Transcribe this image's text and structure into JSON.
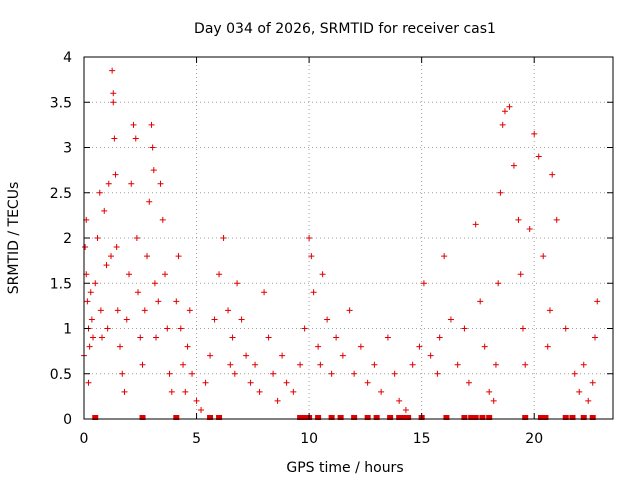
{
  "chart_data": {
    "type": "scatter",
    "title": "Day 034 of 2026, SRMTID for receiver cas1",
    "xlabel": "GPS time / hours",
    "ylabel": "SRMTID / TECUs",
    "xlim": [
      0,
      23.5
    ],
    "ylim": [
      0,
      4
    ],
    "xticks": [
      0,
      5,
      10,
      15,
      20
    ],
    "xtick_labels": [
      "0",
      "5",
      "10",
      "15",
      "20"
    ],
    "yticks": [
      0,
      0.5,
      1,
      1.5,
      2,
      2.5,
      3,
      3.5,
      4
    ],
    "ytick_labels": [
      "0",
      "0.5",
      "1",
      "1.5",
      "2",
      "2.5",
      "3",
      "3.5",
      "4"
    ],
    "grid": true,
    "series": [
      {
        "name": "SRMTID",
        "color": "#e00000",
        "marker": "+",
        "x": [
          0.0,
          0.05,
          0.1,
          0.1,
          0.15,
          0.2,
          0.2,
          0.25,
          0.3,
          0.35,
          0.4,
          0.5,
          0.6,
          0.7,
          0.75,
          0.8,
          0.9,
          1.0,
          1.05,
          1.1,
          1.2,
          1.25,
          1.3,
          1.3,
          1.35,
          1.4,
          1.45,
          1.5,
          1.6,
          1.7,
          1.8,
          1.9,
          2.0,
          2.1,
          2.2,
          2.3,
          2.35,
          2.4,
          2.5,
          2.6,
          2.7,
          2.8,
          2.9,
          3.0,
          3.05,
          3.1,
          3.15,
          3.2,
          3.3,
          3.4,
          3.5,
          3.6,
          3.7,
          3.8,
          3.9,
          4.1,
          4.2,
          4.3,
          4.4,
          4.5,
          4.6,
          4.7,
          4.8,
          5.0,
          5.2,
          5.4,
          5.6,
          5.8,
          6.0,
          6.2,
          6.4,
          6.5,
          6.6,
          6.7,
          6.8,
          7.0,
          7.2,
          7.4,
          7.6,
          7.8,
          8.0,
          8.2,
          8.4,
          8.6,
          8.8,
          9.0,
          9.3,
          9.6,
          9.8,
          10.0,
          10.1,
          10.2,
          10.4,
          10.5,
          10.6,
          10.8,
          11.0,
          11.2,
          11.5,
          11.8,
          12.0,
          12.3,
          12.6,
          12.9,
          13.2,
          13.5,
          13.8,
          14.0,
          14.3,
          14.6,
          14.9,
          15.1,
          15.4,
          15.7,
          15.8,
          16.0,
          16.3,
          16.6,
          16.9,
          17.1,
          17.4,
          17.6,
          17.8,
          18.0,
          18.2,
          18.3,
          18.4,
          18.5,
          18.6,
          18.7,
          18.9,
          19.1,
          19.3,
          19.4,
          19.5,
          19.6,
          19.8,
          20.0,
          20.2,
          20.4,
          20.6,
          20.7,
          20.8,
          21.0,
          21.4,
          21.8,
          22.0,
          22.2,
          22.4,
          22.6,
          22.7,
          22.8
        ],
        "y": [
          0.7,
          1.9,
          2.2,
          1.6,
          1.3,
          1.0,
          0.4,
          0.8,
          1.4,
          1.1,
          0.9,
          1.5,
          2.0,
          2.5,
          1.2,
          0.9,
          2.3,
          1.7,
          1.0,
          2.6,
          1.8,
          3.85,
          3.6,
          3.5,
          3.1,
          2.7,
          1.9,
          1.2,
          0.8,
          0.5,
          0.3,
          1.1,
          1.6,
          2.6,
          3.25,
          3.1,
          2.0,
          1.4,
          0.9,
          0.6,
          1.2,
          1.8,
          2.4,
          3.25,
          3.0,
          2.75,
          1.5,
          0.9,
          1.3,
          2.6,
          2.2,
          1.6,
          1.0,
          0.5,
          0.3,
          1.3,
          1.8,
          1.0,
          0.6,
          0.3,
          0.8,
          1.2,
          0.5,
          0.2,
          0.1,
          0.4,
          0.7,
          1.1,
          1.6,
          2.0,
          1.2,
          0.6,
          0.9,
          0.5,
          1.5,
          1.1,
          0.7,
          0.4,
          0.6,
          0.3,
          1.4,
          0.9,
          0.5,
          0.2,
          0.7,
          0.4,
          0.3,
          0.6,
          1.0,
          2.0,
          1.8,
          1.4,
          0.8,
          0.6,
          1.6,
          1.1,
          0.5,
          0.9,
          0.7,
          1.2,
          0.5,
          0.8,
          0.4,
          0.6,
          0.3,
          0.9,
          0.5,
          0.2,
          0.1,
          0.6,
          0.8,
          1.5,
          0.7,
          0.5,
          0.9,
          1.8,
          1.1,
          0.6,
          1.0,
          0.4,
          2.15,
          1.3,
          0.8,
          0.3,
          0.2,
          0.6,
          1.5,
          2.5,
          3.25,
          3.4,
          3.45,
          2.8,
          2.2,
          1.6,
          1.0,
          0.6,
          2.1,
          3.15,
          2.9,
          1.8,
          0.8,
          1.2,
          2.7,
          2.2,
          1.0,
          0.5,
          0.3,
          0.6,
          0.2,
          0.4,
          0.9,
          1.3
        ]
      }
    ],
    "zero_markers_x": [
      0.5,
      2.6,
      4.1,
      5.6,
      6.0,
      9.6,
      9.7,
      9.8,
      10.0,
      10.4,
      11.0,
      11.4,
      12.0,
      12.6,
      13.0,
      13.6,
      14.0,
      14.2,
      14.4,
      15.0,
      16.1,
      16.9,
      17.2,
      17.4,
      17.7,
      18.0,
      19.6,
      20.3,
      20.5,
      21.4,
      21.7,
      22.2,
      22.6
    ]
  }
}
